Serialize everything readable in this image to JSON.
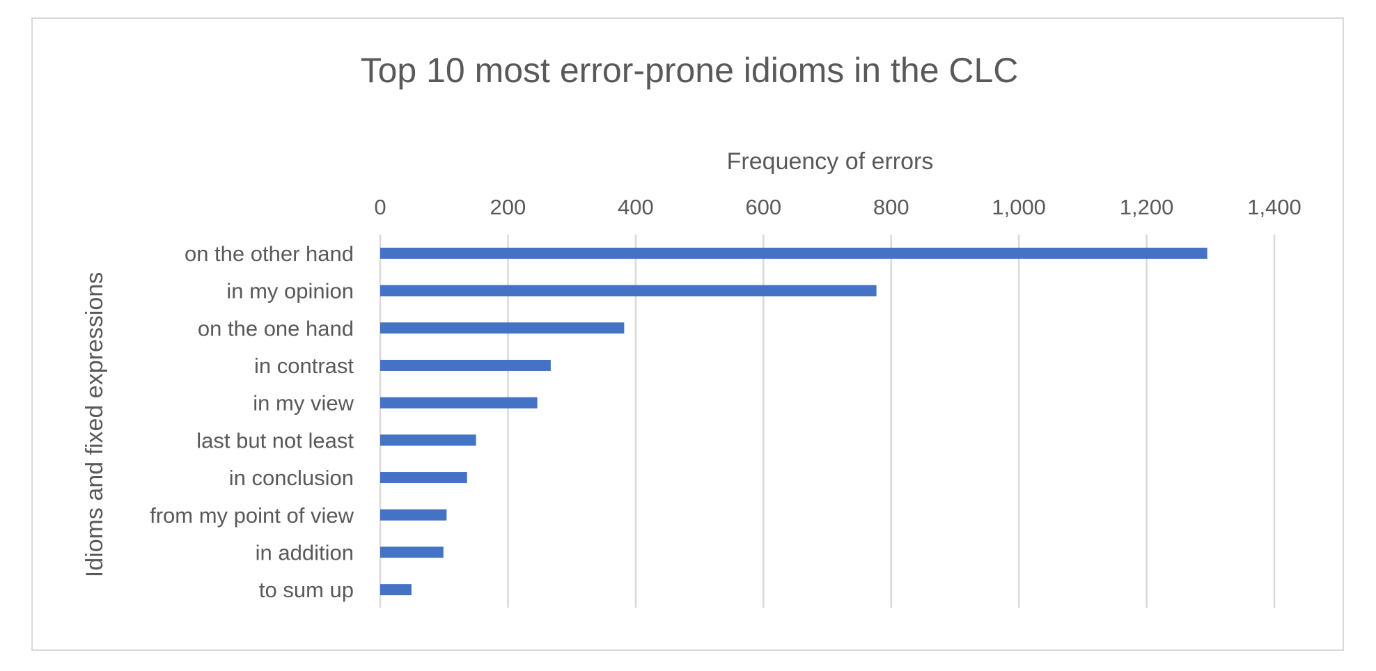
{
  "chart_data": {
    "type": "bar",
    "orientation": "horizontal",
    "title": "Top 10 most error-prone idioms in the CLC",
    "xlabel": "Frequency of errors",
    "ylabel": "Idioms and fixed expressions",
    "xaxis_position": "top",
    "xlim": [
      0,
      1400
    ],
    "ticks": [
      0,
      200,
      400,
      600,
      800,
      1000,
      1200,
      1400
    ],
    "tick_labels": [
      "0",
      "200",
      "400",
      "600",
      "800",
      "1,000",
      "1,200",
      "1,400"
    ],
    "grid": true,
    "legend": "none",
    "categories": [
      "on the other hand",
      "in my opinion",
      "on the one hand",
      "in contrast",
      "in my view",
      "last but not least",
      "in conclusion",
      "from my point of view",
      "in addition",
      "to sum up"
    ],
    "values": [
      1295,
      777,
      382,
      267,
      246,
      150,
      136,
      104,
      99,
      49
    ],
    "bar_color": "#4472c4"
  }
}
